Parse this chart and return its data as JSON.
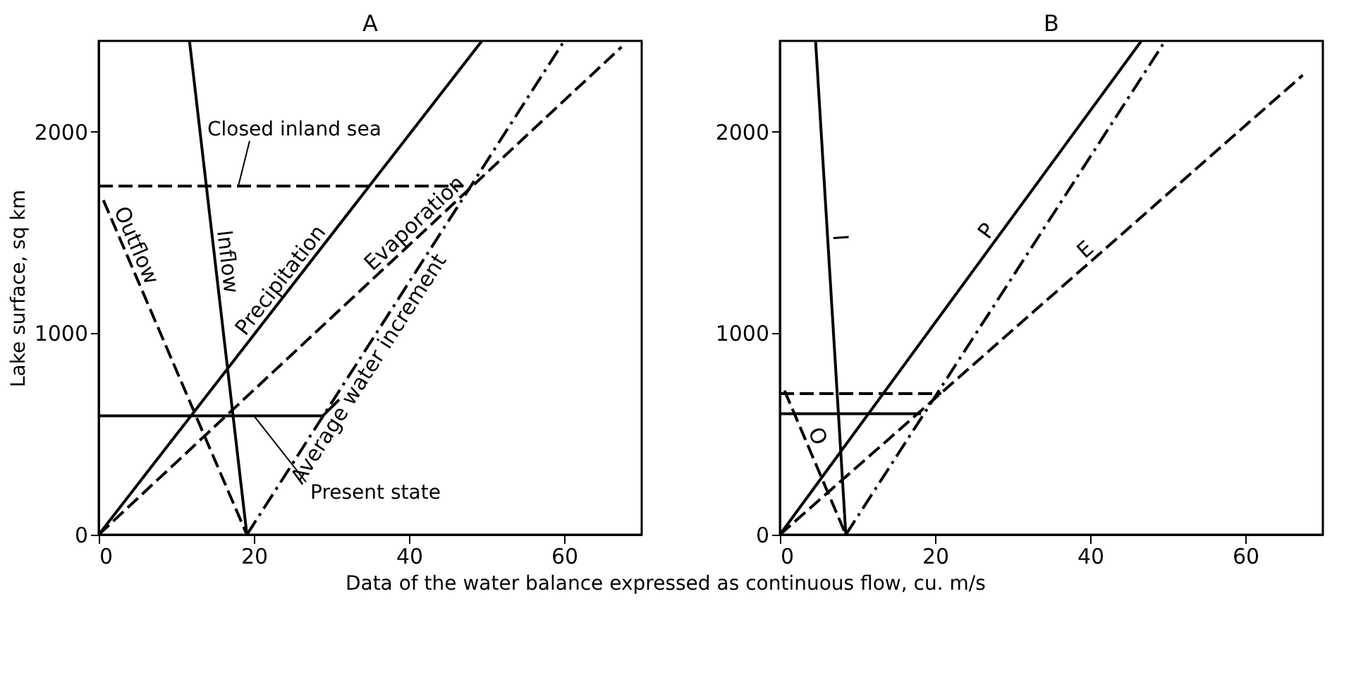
{
  "chart_data": [
    {
      "type": "line",
      "title": "A",
      "xlabel": "Data of the water balance expressed as continuous flow, cu. m/s",
      "ylabel": "Lake surface, sq km",
      "xlim": [
        0,
        70
      ],
      "ylim": [
        0,
        2450
      ],
      "xticks": [
        0,
        20,
        40,
        60
      ],
      "yticks": [
        0,
        1000,
        2000
      ],
      "grid": false,
      "legend": false,
      "marker": "none",
      "series": [
        {
          "name": "Inflow",
          "color": "#000000",
          "line_style": "solid",
          "x": [
            11.7,
            19.1
          ],
          "values": [
            2450,
            0
          ]
        },
        {
          "name": "Precipitation",
          "color": "#000000",
          "line_style": "solid",
          "x": [
            0,
            49.4
          ],
          "values": [
            0,
            2450
          ]
        },
        {
          "name": "Evaporation",
          "color": "#000000",
          "line_style": "dashed",
          "x": [
            0,
            67.4
          ],
          "values": [
            0,
            2420
          ]
        },
        {
          "name": "Average water increment",
          "color": "#000000",
          "line_style": "dashdot",
          "x": [
            19.1,
            60
          ],
          "values": [
            0,
            2450
          ]
        },
        {
          "name": "Outflow",
          "color": "#000000",
          "line_style": "dashed",
          "x": [
            0.6,
            19.1
          ],
          "values": [
            1660,
            0
          ]
        },
        {
          "color": "#000000",
          "line_style": "dashed",
          "x": [
            0,
            47
          ],
          "values": [
            1730,
            1730
          ]
        },
        {
          "color": "#000000",
          "line_style": "solid",
          "x": [
            0,
            28.9,
            31
          ],
          "values": [
            590,
            590,
            670
          ]
        }
      ],
      "annotations": [
        {
          "text": "Closed inland sea",
          "x": 18,
          "y": 1730
        },
        {
          "text": "Present state",
          "x": 20,
          "y": 590
        }
      ]
    },
    {
      "type": "line",
      "title": "B",
      "xlim": [
        0,
        70
      ],
      "ylim": [
        0,
        2450
      ],
      "xticks": [
        0,
        20,
        40,
        60
      ],
      "yticks": [
        0,
        1000,
        2000
      ],
      "grid": false,
      "legend": false,
      "marker": "none",
      "series": [
        {
          "name": "I",
          "color": "#000000",
          "line_style": "solid",
          "x": [
            4.6,
            8.5
          ],
          "values": [
            2450,
            0
          ]
        },
        {
          "name": "P",
          "color": "#000000",
          "line_style": "solid",
          "x": [
            0,
            46.6
          ],
          "values": [
            0,
            2450
          ]
        },
        {
          "name": "E",
          "color": "#000000",
          "line_style": "dashed",
          "x": [
            0,
            67.4
          ],
          "values": [
            0,
            2280
          ]
        },
        {
          "color": "#000000",
          "line_style": "dashdot",
          "x": [
            8.5,
            49.5
          ],
          "values": [
            0,
            2440
          ]
        },
        {
          "name": "O",
          "color": "#000000",
          "line_style": "dashed",
          "x": [
            0.6,
            8.5
          ],
          "values": [
            715,
            0
          ]
        },
        {
          "color": "#000000",
          "line_style": "dashed",
          "x": [
            0,
            20.8
          ],
          "values": [
            700,
            700
          ]
        },
        {
          "color": "#000000",
          "line_style": "solid",
          "x": [
            0,
            18.2
          ],
          "values": [
            600,
            600
          ]
        }
      ]
    }
  ]
}
